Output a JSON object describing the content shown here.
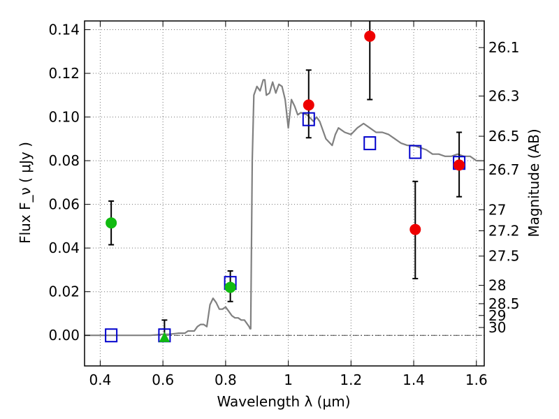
{
  "chart_data": {
    "type": "scatter",
    "xlabel": "Wavelength  λ (μm)",
    "ylabel": "Flux  F_ν  ( μJy )",
    "y2label": "Magnitude (AB)",
    "xlim": [
      0.35,
      1.625
    ],
    "ylim": [
      -0.014,
      0.144
    ],
    "grid": true,
    "x_ticks": [
      0.4,
      0.6,
      0.8,
      1.0,
      1.2,
      1.4,
      1.6
    ],
    "x_tick_labels": [
      "0.4",
      "0.6",
      "0.8",
      "1",
      "1.2",
      "1.4",
      "1.6"
    ],
    "y_ticks": [
      0.0,
      0.02,
      0.04,
      0.06,
      0.08,
      0.1,
      0.12,
      0.14
    ],
    "y_tick_labels": [
      "0.00",
      "0.02",
      "0.04",
      "0.06",
      "0.08",
      "0.10",
      "0.12",
      "0.14"
    ],
    "magnitude_ticks": [
      {
        "label": "26.1",
        "flux": 0.1318
      },
      {
        "label": "26.3",
        "flux": 0.1096
      },
      {
        "label": "26.5",
        "flux": 0.0912
      },
      {
        "label": "26.7",
        "flux": 0.0759
      },
      {
        "label": "27",
        "flux": 0.0575
      },
      {
        "label": "27.2",
        "flux": 0.0479
      },
      {
        "label": "27.5",
        "flux": 0.0363
      },
      {
        "label": "28",
        "flux": 0.0229
      },
      {
        "label": "28.5",
        "flux": 0.0145
      },
      {
        "label": "29",
        "flux": 0.0091
      },
      {
        "label": "30",
        "flux": 0.0036
      }
    ],
    "series": [
      {
        "kind": "line",
        "color": "#808080",
        "x": [
          0.35,
          0.56,
          0.6,
          0.62,
          0.65,
          0.67,
          0.68,
          0.69,
          0.7,
          0.71,
          0.72,
          0.73,
          0.74,
          0.75,
          0.76,
          0.77,
          0.78,
          0.79,
          0.8,
          0.81,
          0.82,
          0.83,
          0.84,
          0.85,
          0.86,
          0.87,
          0.875,
          0.878,
          0.88,
          0.885,
          0.89,
          0.9,
          0.91,
          0.92,
          0.925,
          0.93,
          0.94,
          0.95,
          0.96,
          0.97,
          0.98,
          0.99,
          1.0,
          1.01,
          1.02,
          1.03,
          1.04,
          1.06,
          1.08,
          1.09,
          1.1,
          1.12,
          1.14,
          1.15,
          1.16,
          1.18,
          1.2,
          1.22,
          1.24,
          1.26,
          1.28,
          1.3,
          1.32,
          1.34,
          1.36,
          1.38,
          1.4,
          1.42,
          1.44,
          1.46,
          1.48,
          1.5,
          1.52,
          1.54,
          1.56,
          1.58,
          1.6,
          1.625
        ],
        "y": [
          0.0,
          0.0,
          0.0005,
          0.0005,
          0.001,
          0.001,
          0.002,
          0.002,
          0.002,
          0.004,
          0.005,
          0.005,
          0.004,
          0.014,
          0.017,
          0.015,
          0.012,
          0.012,
          0.013,
          0.011,
          0.009,
          0.008,
          0.008,
          0.007,
          0.007,
          0.005,
          0.004,
          0.003,
          0.003,
          0.08,
          0.11,
          0.114,
          0.112,
          0.117,
          0.117,
          0.11,
          0.111,
          0.116,
          0.111,
          0.115,
          0.114,
          0.108,
          0.095,
          0.108,
          0.105,
          0.101,
          0.102,
          0.101,
          0.098,
          0.1,
          0.098,
          0.09,
          0.087,
          0.092,
          0.095,
          0.093,
          0.092,
          0.095,
          0.097,
          0.095,
          0.093,
          0.093,
          0.092,
          0.09,
          0.088,
          0.087,
          0.087,
          0.086,
          0.085,
          0.083,
          0.083,
          0.082,
          0.082,
          0.083,
          0.082,
          0.082,
          0.08,
          0.08
        ]
      },
      {
        "kind": "markers",
        "marker": "open-square",
        "color": "#0000cc",
        "x": [
          0.435,
          0.605,
          0.815,
          1.065,
          1.26,
          1.405,
          1.545
        ],
        "y": [
          0.0,
          0.0,
          0.024,
          0.099,
          0.088,
          0.084,
          0.079
        ]
      },
      {
        "kind": "markers",
        "marker": "circle",
        "color": "#11bb11",
        "x": [
          0.435,
          0.815
        ],
        "y": [
          0.0515,
          0.022
        ],
        "yerr_low": [
          0.0415,
          0.0155
        ],
        "yerr_high": [
          0.0615,
          0.0295
        ]
      },
      {
        "kind": "markers",
        "marker": "triangle-up",
        "color": "#11bb11",
        "x": [
          0.605
        ],
        "y": [
          -0.001
        ],
        "yerr_low": [
          -0.001
        ],
        "yerr_high": [
          0.007
        ]
      },
      {
        "kind": "markers",
        "marker": "circle",
        "color": "#ee0000",
        "x": [
          1.065,
          1.26,
          1.405,
          1.545
        ],
        "y": [
          0.1055,
          0.137,
          0.0485,
          0.078
        ],
        "yerr_low": [
          0.0905,
          0.108,
          0.026,
          0.0635
        ],
        "yerr_high": [
          0.1215,
          0.146,
          0.0705,
          0.093
        ]
      }
    ]
  }
}
